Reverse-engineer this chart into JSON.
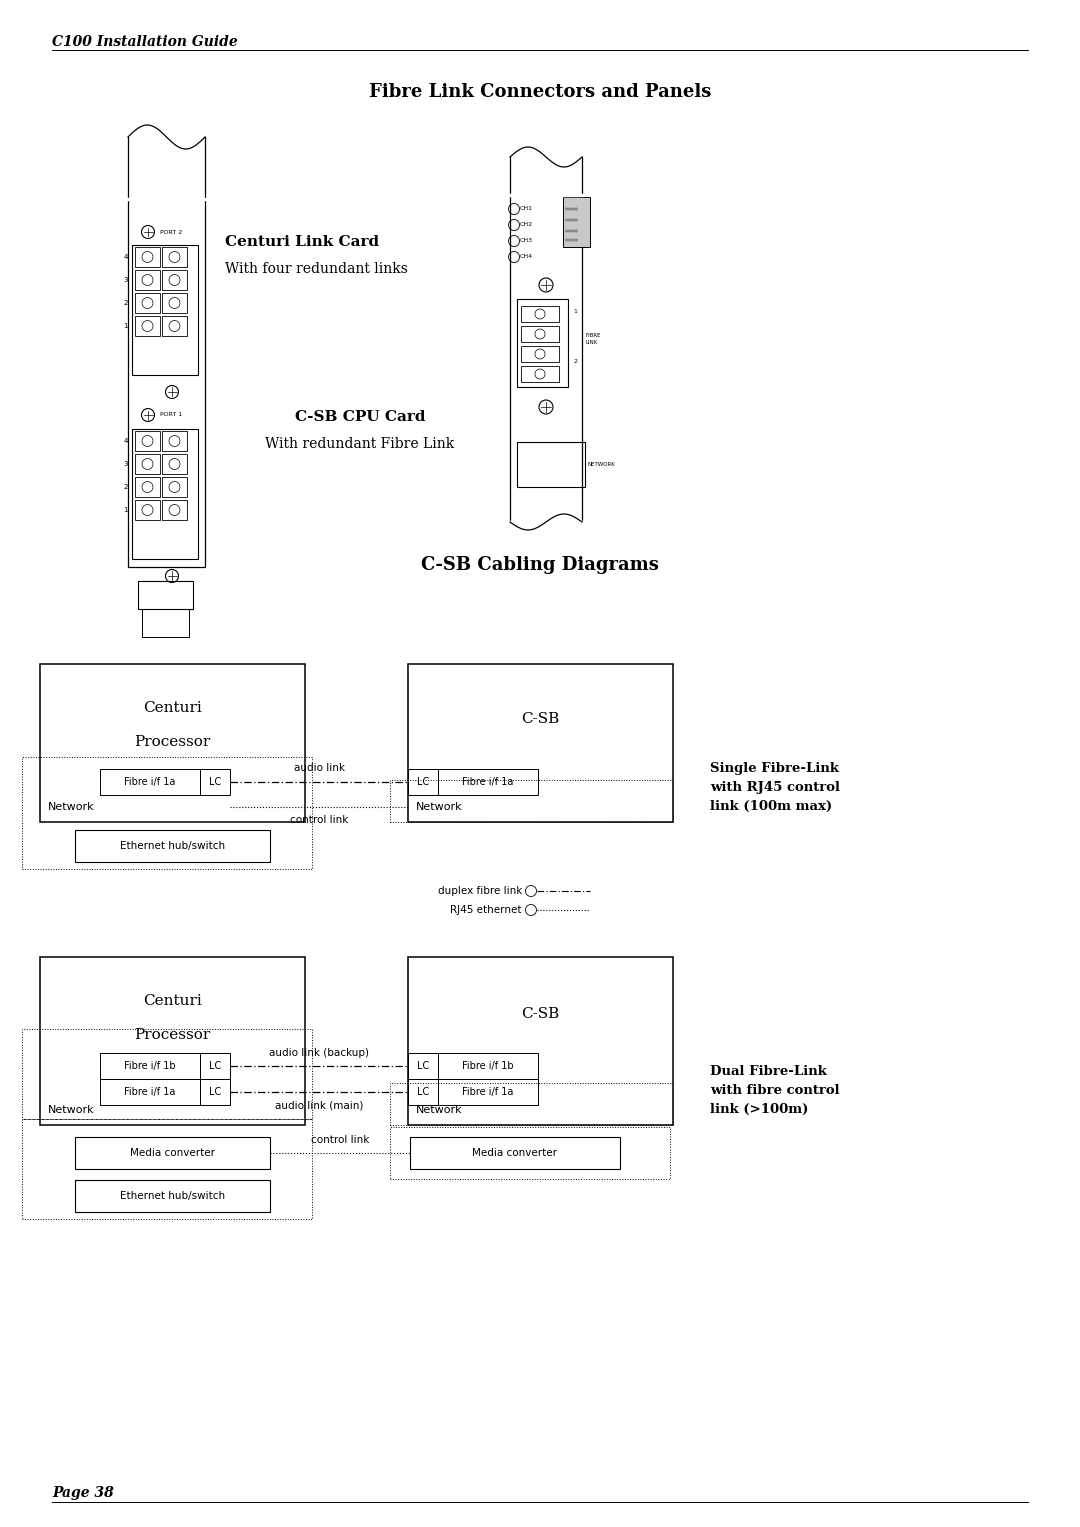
{
  "page_title": "C100 Installation Guide",
  "section1_title": "Fibre Link Connectors and Panels",
  "centuri_label": "Centuri Link Card",
  "centuri_sublabel": "With four redundant links",
  "csb_cpu_label": "C-SB CPU Card",
  "csb_cpu_sublabel": "With redundant Fibre Link",
  "section2_title": "C-SB Cabling Diagrams",
  "single_link_label": "Single Fibre-Link\nwith RJ45 control\nlink (100m max)",
  "dual_link_label": "Dual Fibre-Link\nwith fibre control\nlink (>100m)",
  "duplex_fibre_label": "duplex fibre link",
  "rj45_label": "RJ45 ethernet",
  "page_footer": "Page 38",
  "bg_color": "#ffffff",
  "line_color": "#000000",
  "text_color": "#000000"
}
